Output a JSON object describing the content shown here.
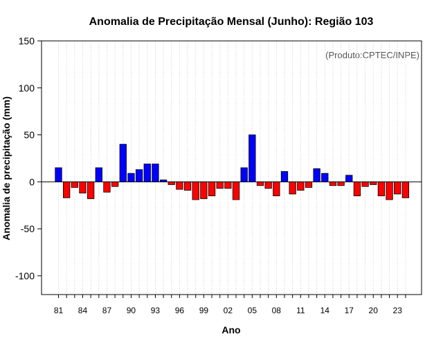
{
  "chart_data": {
    "type": "bar",
    "title": "Anomalia de Precipitação Mensal (Junho): Região 103",
    "xlabel": "Ano",
    "ylabel": "Anomalia de precipitação (mm)",
    "credit": "(Produto:CPTEC/INPE)",
    "ylim": [
      -120,
      150
    ],
    "yticks": [
      150,
      100,
      50,
      0,
      -50,
      -100
    ],
    "grid": true,
    "colors": {
      "positive": "#0000ff",
      "negative": "#ff0000",
      "outline": "#000000",
      "grid": "#cccccc"
    },
    "categories": [
      "1981",
      "1982",
      "1983",
      "1984",
      "1985",
      "1986",
      "1987",
      "1988",
      "1989",
      "1990",
      "1991",
      "1992",
      "1993",
      "1994",
      "1995",
      "1996",
      "1997",
      "1998",
      "1999",
      "2000",
      "2001",
      "2002",
      "2003",
      "2004",
      "2005",
      "2006",
      "2007",
      "2008",
      "2009",
      "2010",
      "2011",
      "2012",
      "2013",
      "2014",
      "2015",
      "2016",
      "2017",
      "2018",
      "2019",
      "2020",
      "2021",
      "2022",
      "2023",
      "2024"
    ],
    "values": [
      15,
      -17,
      -6,
      -12,
      -18,
      15,
      -11,
      -5,
      40,
      9,
      13,
      19,
      19,
      2,
      -3,
      -8,
      -9,
      -19,
      -18,
      -15,
      -7,
      -7,
      -19,
      15,
      50,
      -4,
      -7,
      -15,
      11,
      -13,
      -9,
      -6,
      14,
      9,
      -4,
      -4,
      7,
      -15,
      -5,
      -3,
      -15,
      -19,
      -13,
      -17
    ],
    "xtick_labels": [
      "81",
      "84",
      "87",
      "90",
      "93",
      "96",
      "99",
      "02",
      "05",
      "08",
      "11",
      "14",
      "17",
      "20",
      "23"
    ],
    "xtick_every": 3
  }
}
